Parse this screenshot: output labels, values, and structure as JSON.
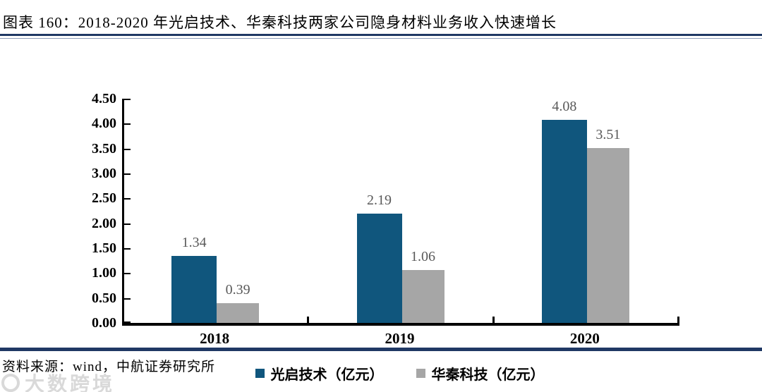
{
  "figure": {
    "title": "图表 160：2018-2020 年光启技术、华秦科技两家公司隐身材料业务收入快速增长",
    "source": "资料来源：wind，中航证券研究所",
    "watermark": "大数跨境"
  },
  "colors": {
    "series_blue": "#10567d",
    "series_gray": "#a6a6a6",
    "value_label": "#595959",
    "rule_navy": "#1f3864",
    "axis": "#000000",
    "watermark": "#d9d9d9"
  },
  "chart_data": {
    "type": "bar",
    "title": "",
    "xlabel": "",
    "ylabel": "",
    "categories": [
      "2018",
      "2019",
      "2020"
    ],
    "series": [
      {
        "name": "光启技术（亿元）",
        "color": "#10567d",
        "values": [
          1.34,
          2.19,
          4.08
        ]
      },
      {
        "name": "华秦科技（亿元）",
        "color": "#a6a6a6",
        "values": [
          0.39,
          1.06,
          3.51
        ]
      }
    ],
    "value_labels": true,
    "value_label_color": "#595959",
    "ylim": [
      0,
      4.5
    ],
    "y_tick_step": 0.5,
    "y_ticks": [
      "4.50",
      "4.00",
      "3.50",
      "3.00",
      "2.50",
      "2.00",
      "1.50",
      "1.00",
      "0.50",
      "0.00"
    ],
    "grid": false,
    "legend_position": "bottom"
  }
}
